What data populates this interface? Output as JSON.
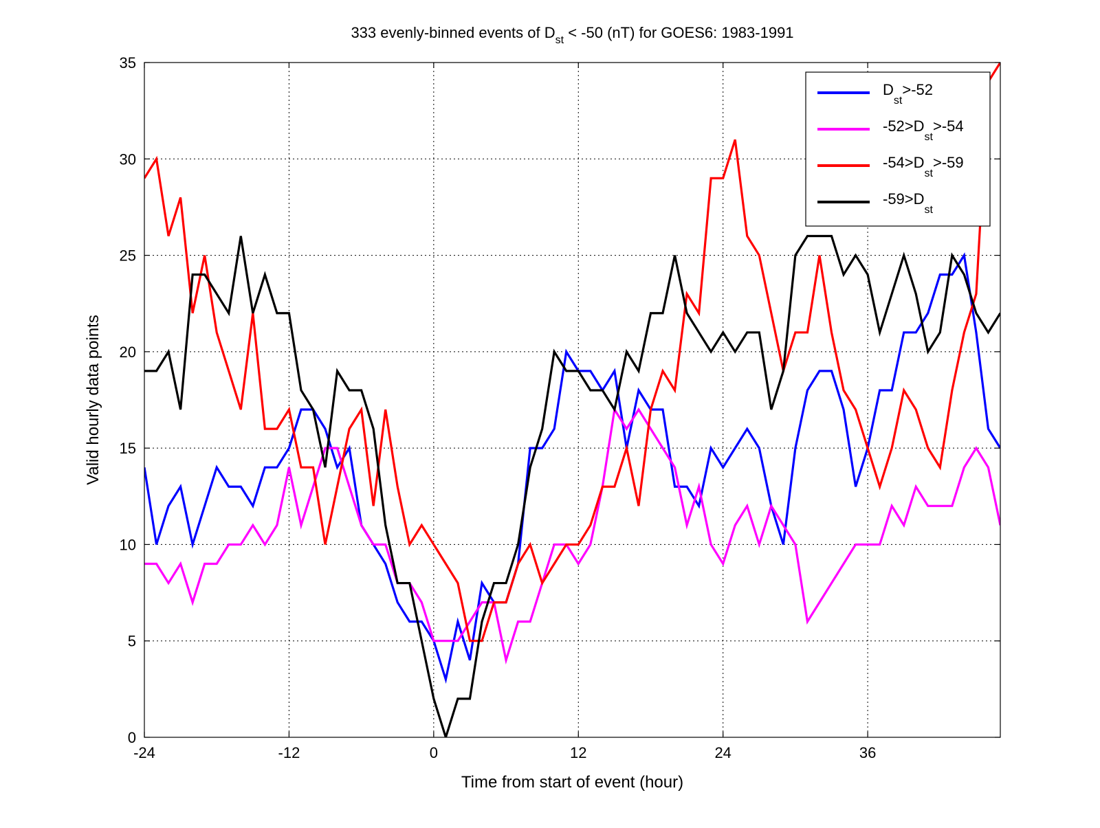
{
  "chart_data": {
    "type": "line",
    "title": {
      "prefix": "333 evenly-binned events of D",
      "sub": "st",
      "suffix": " < -50 (nT) for GOES6: 1983-1991"
    },
    "xlabel": "Time from start of event (hour)",
    "ylabel": "Valid hourly data points",
    "xlim": [
      -24,
      47
    ],
    "ylim": [
      0,
      35
    ],
    "xticks": [
      -24,
      -12,
      0,
      12,
      24,
      36
    ],
    "yticks": [
      0,
      5,
      10,
      15,
      20,
      25,
      30,
      35
    ],
    "grid": true,
    "legend_position": "top-right",
    "x": [
      -24,
      -23,
      -22,
      -21,
      -20,
      -19,
      -18,
      -17,
      -16,
      -15,
      -14,
      -13,
      -12,
      -11,
      -10,
      -9,
      -8,
      -7,
      -6,
      -5,
      -4,
      -3,
      -2,
      -1,
      0,
      1,
      2,
      3,
      4,
      5,
      6,
      7,
      8,
      9,
      10,
      11,
      12,
      13,
      14,
      15,
      16,
      17,
      18,
      19,
      20,
      21,
      22,
      23,
      24,
      25,
      26,
      27,
      28,
      29,
      30,
      31,
      32,
      33,
      34,
      35,
      36,
      37,
      38,
      39,
      40,
      41,
      42,
      43,
      44,
      45,
      46,
      47
    ],
    "series": [
      {
        "legend": {
          "prefix": "D",
          "sub": "st",
          "suffix": ">-52"
        },
        "color": "#0000ff",
        "values": [
          14,
          10,
          12,
          13,
          10,
          12,
          14,
          13,
          13,
          12,
          14,
          14,
          15,
          17,
          17,
          16,
          14,
          15,
          11,
          10,
          9,
          7,
          6,
          6,
          5,
          3,
          6,
          4,
          8,
          7,
          7,
          9,
          15,
          15,
          16,
          20,
          19,
          19,
          18,
          19,
          15,
          18,
          17,
          17,
          13,
          13,
          12,
          15,
          14,
          15,
          16,
          15,
          12,
          10,
          15,
          18,
          19,
          19,
          17,
          13,
          15,
          18,
          18,
          21,
          21,
          22,
          24,
          24,
          25,
          21,
          16,
          15
        ]
      },
      {
        "legend": {
          "prefix": "-52>D",
          "sub": "st",
          "suffix": ">-54"
        },
        "color": "#ff00ff",
        "values": [
          9,
          9,
          8,
          9,
          7,
          9,
          9,
          10,
          10,
          11,
          10,
          11,
          14,
          11,
          13,
          15,
          15,
          13,
          11,
          10,
          10,
          8,
          8,
          7,
          5,
          5,
          5,
          6,
          7,
          7,
          4,
          6,
          6,
          8,
          10,
          10,
          9,
          10,
          13,
          17,
          16,
          17,
          16,
          15,
          14,
          11,
          13,
          10,
          9,
          11,
          12,
          10,
          12,
          11,
          10,
          6,
          7,
          8,
          9,
          10,
          10,
          10,
          12,
          11,
          13,
          12,
          12,
          12,
          14,
          15,
          14,
          11
        ]
      },
      {
        "legend": {
          "prefix": "-54>D",
          "sub": "st",
          "suffix": ">-59"
        },
        "color": "#ff0000",
        "values": [
          29,
          30,
          26,
          28,
          22,
          25,
          21,
          19,
          17,
          22,
          16,
          16,
          17,
          14,
          14,
          10,
          13,
          16,
          17,
          12,
          17,
          13,
          10,
          11,
          10,
          9,
          8,
          5,
          5,
          7,
          7,
          9,
          10,
          8,
          9,
          10,
          10,
          11,
          13,
          13,
          15,
          12,
          17,
          19,
          18,
          23,
          22,
          29,
          29,
          31,
          26,
          25,
          22,
          19,
          21,
          21,
          25,
          21,
          18,
          17,
          15,
          13,
          15,
          18,
          17,
          15,
          14,
          18,
          21,
          23,
          34,
          35
        ]
      },
      {
        "legend": {
          "prefix": "-59>D",
          "sub": "st",
          "suffix": ""
        },
        "color": "#000000",
        "values": [
          19,
          19,
          20,
          17,
          24,
          24,
          23,
          22,
          26,
          22,
          24,
          22,
          22,
          18,
          17,
          14,
          19,
          18,
          18,
          16,
          11,
          8,
          8,
          5,
          2,
          0,
          2,
          2,
          6,
          8,
          8,
          10,
          14,
          16,
          20,
          19,
          19,
          18,
          18,
          17,
          20,
          19,
          22,
          22,
          25,
          22,
          21,
          20,
          21,
          20,
          21,
          21,
          17,
          19,
          25,
          26,
          26,
          26,
          24,
          25,
          24,
          21,
          23,
          25,
          23,
          20,
          21,
          25,
          24,
          22,
          21,
          22
        ]
      }
    ]
  }
}
